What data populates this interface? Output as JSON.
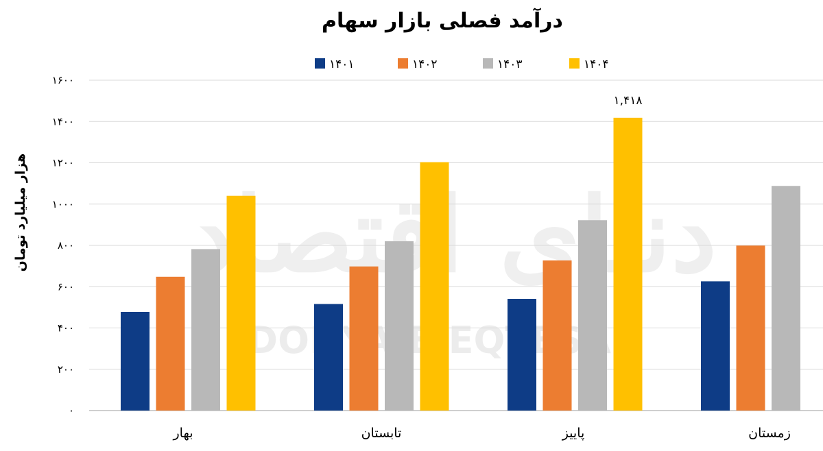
{
  "chart_data": {
    "type": "bar",
    "title": "درآمد فصلی بازار سهام",
    "ylabel": "هزار میلیارد تومان",
    "xlabel": "",
    "ylim": [
      0,
      1600
    ],
    "yticks": [
      0,
      200,
      400,
      600,
      800,
      1000,
      1200,
      1400,
      1600
    ],
    "ytick_labels": [
      "۰",
      "۲۰۰",
      "۴۰۰",
      "۶۰۰",
      "۸۰۰",
      "۱۰۰۰",
      "۱۲۰۰",
      "۱۴۰۰",
      "۱۶۰۰"
    ],
    "categories": [
      "بهار",
      "تابستان",
      "پاییز",
      "زمستان"
    ],
    "series": [
      {
        "name": "۱۴۰۱",
        "color": "#0E3C86",
        "values": [
          478,
          516,
          541,
          626
        ]
      },
      {
        "name": "۱۴۰۲",
        "color": "#EC7D31",
        "values": [
          648,
          698,
          727,
          799
        ]
      },
      {
        "name": "۱۴۰۳",
        "color": "#B8B8B8",
        "values": [
          782,
          820,
          922,
          1088
        ]
      },
      {
        "name": "۱۴۰۴",
        "color": "#FFC000",
        "values": [
          1040,
          1203,
          1418,
          null
        ]
      }
    ],
    "data_labels": [
      {
        "series": 3,
        "category": 2,
        "text": "۱,۴۱۸"
      }
    ],
    "grid": true,
    "legend_position": "top-center"
  },
  "watermark": {
    "latin": "DONYA-E-EQTESAD",
    "script": "دنیای اقتصاد"
  }
}
